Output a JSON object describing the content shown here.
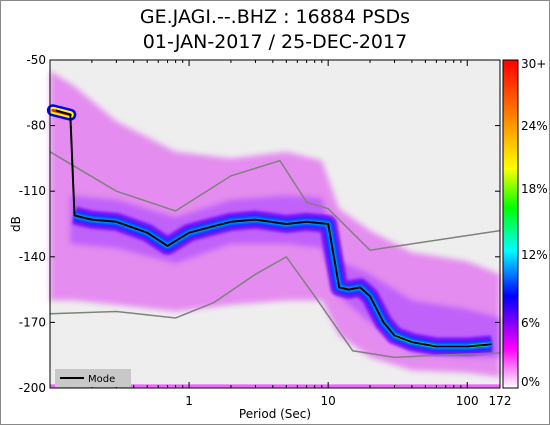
{
  "chart_data": {
    "type": "heatmap",
    "title": "GE.JAGI.--.BHZ : 16884 PSDs",
    "subtitle": "01-JAN-2017 / 25-DEC-2017",
    "xlabel": "Period (Sec)",
    "ylabel": "dB",
    "x_scale": "log",
    "xlim": [
      0.1,
      172
    ],
    "ylim": [
      -200,
      -50
    ],
    "x_ticks": [
      {
        "value": 1,
        "label": "1"
      },
      {
        "value": 10,
        "label": "10"
      },
      {
        "value": 100,
        "label": "100"
      },
      {
        "value": 172,
        "label": "172"
      }
    ],
    "y_ticks": [
      {
        "value": -50,
        "label": "-50"
      },
      {
        "value": -80,
        "label": "-80"
      },
      {
        "value": -110,
        "label": "-110"
      },
      {
        "value": -140,
        "label": "-140"
      },
      {
        "value": -170,
        "label": "-170"
      },
      {
        "value": -200,
        "label": "-200"
      }
    ],
    "colorbar": {
      "labels": [
        "30+",
        "24%",
        "18%",
        "12%",
        "6%",
        "0%"
      ],
      "colors": [
        "#ff0000",
        "#ff8800",
        "#ffff00",
        "#00ff00",
        "#00ffff",
        "#0000ff",
        "#ff00ff",
        "#ffffff"
      ]
    },
    "legend": {
      "entries": [
        "Mode"
      ],
      "position": "bottom-left"
    },
    "series": [
      {
        "name": "Mode",
        "x": [
          0.11,
          0.14,
          0.15,
          0.17,
          0.2,
          0.3,
          0.5,
          0.7,
          1.0,
          1.5,
          2.0,
          3.0,
          5.0,
          7.0,
          10.0,
          12.0,
          14.0,
          17.0,
          20.0,
          25.0,
          30.0,
          40.0,
          60.0,
          100.0,
          150.0
        ],
        "y": [
          -73,
          -75,
          -121,
          -122,
          -123,
          -124,
          -129,
          -135,
          -129,
          -126,
          -124,
          -123,
          -125,
          -124,
          -125,
          -154,
          -155,
          -154,
          -158,
          -170,
          -176,
          -179,
          -181,
          -181,
          -180
        ]
      },
      {
        "x": [
          0.1,
          0.3,
          0.8,
          2.0,
          4.5,
          7.0,
          10.0,
          20.0,
          172.0
        ],
        "y": [
          -92,
          -110,
          -119,
          -103,
          -96,
          -115,
          -118,
          -137,
          -128
        ]
      },
      {
        "x": [
          0.1,
          0.3,
          0.8,
          1.5,
          3.0,
          5.0,
          8.0,
          15.0,
          30.0,
          60.0,
          172.0
        ],
        "y": [
          -166,
          -165,
          -168,
          -161,
          -148,
          -140,
          -158,
          -183,
          -186,
          -185,
          -184
        ]
      }
    ]
  }
}
